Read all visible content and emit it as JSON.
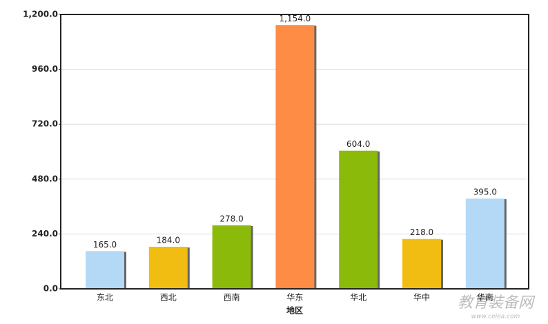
{
  "chart_data": {
    "type": "bar",
    "categories": [
      "东北",
      "西北",
      "西南",
      "华东",
      "华北",
      "华中",
      "华南"
    ],
    "values": [
      165,
      184,
      278,
      1154,
      604,
      218,
      395
    ],
    "value_labels": [
      "165.0",
      "184.0",
      "278.0",
      "1,154.0",
      "604.0",
      "218.0",
      "395.0"
    ],
    "colors": [
      "#b3d9f7",
      "#f2bd12",
      "#8cba0a",
      "#ff8c45",
      "#8cba0a",
      "#f2bd12",
      "#b3d9f7"
    ],
    "x_label": "地区",
    "ylim": [
      0,
      1200
    ],
    "yticks": [
      {
        "value": 0,
        "label": "0.0"
      },
      {
        "value": 240,
        "label": "240.0"
      },
      {
        "value": 480,
        "label": "480.0"
      },
      {
        "value": 720,
        "label": "720.0"
      },
      {
        "value": 960,
        "label": "960.0"
      },
      {
        "value": 1200,
        "label": "1,200.0"
      }
    ],
    "grid": true,
    "watermark": "教育装备网",
    "watermark_url": "www.ceiea.com"
  }
}
